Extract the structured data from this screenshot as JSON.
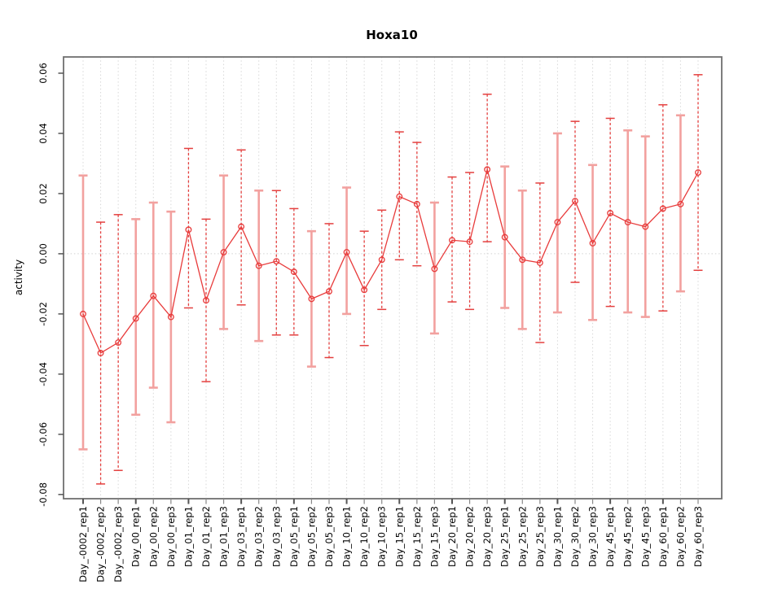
{
  "chart_data": {
    "type": "line",
    "title": "Hoxa10",
    "xlabel": "",
    "ylabel": "activity",
    "legend": "none",
    "marker": "open-circle",
    "grid": {
      "vertical": "dotted",
      "zero_line_dotted": true
    },
    "ylim": [
      -0.0814,
      0.0654
    ],
    "yticks": {
      "values": [
        0.06,
        0.04,
        0.02,
        0.0,
        -0.02,
        -0.04,
        -0.06,
        -0.08
      ],
      "labels": [
        "0.06",
        "0.04",
        "0.02",
        "0.00",
        "-0.02",
        "-0.04",
        "-0.06",
        "-0.08"
      ]
    },
    "categories": [
      "Day_-0002_rep1",
      "Day_-0002_rep2",
      "Day_-0002_rep3",
      "Day_00_rep1",
      "Day_00_rep2",
      "Day_00_rep3",
      "Day_01_rep1",
      "Day_01_rep2",
      "Day_01_rep3",
      "Day_03_rep1",
      "Day_03_rep2",
      "Day_03_rep3",
      "Day_05_rep1",
      "Day_05_rep2",
      "Day_05_rep3",
      "Day_10_rep1",
      "Day_10_rep2",
      "Day_10_rep3",
      "Day_15_rep1",
      "Day_15_rep2",
      "Day_15_rep3",
      "Day_20_rep1",
      "Day_20_rep2",
      "Day_20_rep3",
      "Day_25_rep1",
      "Day_25_rep2",
      "Day_25_rep3",
      "Day_30_rep1",
      "Day_30_rep2",
      "Day_30_rep3",
      "Day_45_rep1",
      "Day_45_rep2",
      "Day_45_rep3",
      "Day_60_rep1",
      "Day_60_rep2",
      "Day_60_rep3"
    ],
    "series": [
      {
        "name": "activity",
        "values": [
          -0.02,
          -0.033,
          -0.0295,
          -0.0215,
          -0.014,
          -0.021,
          0.008,
          -0.0155,
          0.0005,
          0.009,
          -0.004,
          -0.0025,
          -0.006,
          -0.015,
          -0.0125,
          0.0005,
          -0.012,
          -0.002,
          0.019,
          0.0165,
          -0.005,
          0.0045,
          0.004,
          0.028,
          0.0055,
          -0.002,
          -0.003,
          0.0105,
          0.0175,
          0.0035,
          0.0135,
          0.0105,
          0.009,
          0.015,
          0.0165,
          0.027
        ],
        "lower": [
          -0.065,
          -0.0765,
          -0.072,
          -0.0535,
          -0.0445,
          -0.056,
          -0.018,
          -0.0425,
          -0.025,
          -0.017,
          -0.029,
          -0.027,
          -0.027,
          -0.0375,
          -0.0345,
          -0.02,
          -0.0305,
          -0.0185,
          -0.002,
          -0.004,
          -0.0265,
          -0.016,
          -0.0185,
          0.004,
          -0.018,
          -0.025,
          -0.0295,
          -0.0195,
          -0.0095,
          -0.022,
          -0.0175,
          -0.0195,
          -0.021,
          -0.019,
          -0.0125,
          -0.0055
        ],
        "upper": [
          0.026,
          0.0105,
          0.013,
          0.0115,
          0.017,
          0.014,
          0.035,
          0.0115,
          0.026,
          0.0345,
          0.021,
          0.021,
          0.015,
          0.0075,
          0.01,
          0.022,
          0.0075,
          0.0145,
          0.0405,
          0.037,
          0.017,
          0.0255,
          0.027,
          0.053,
          0.029,
          0.021,
          0.0235,
          0.04,
          0.044,
          0.0295,
          0.045,
          0.041,
          0.039,
          0.0495,
          0.046,
          0.0595
        ],
        "bar_style": [
          "solid",
          "dashed",
          "dashed",
          "solid",
          "solid",
          "solid",
          "dashed",
          "dashed",
          "solid",
          "dashed",
          "solid",
          "dashed",
          "dashed",
          "solid",
          "dashed",
          "solid",
          "dashed",
          "dashed",
          "dashed",
          "dashed",
          "solid",
          "dashed",
          "dashed",
          "dashed",
          "solid",
          "solid",
          "dashed",
          "solid",
          "dashed",
          "solid",
          "dashed",
          "solid",
          "solid",
          "dashed",
          "solid",
          "dashed"
        ]
      }
    ],
    "colors": {
      "series": "#e83b3b",
      "bar_solid": "#f2a19f",
      "bar_dashed": "#e4403f",
      "grid": "#d8d8d8",
      "zero_line": "#d2d2d2",
      "box": "#707070",
      "tick_major": "#555555",
      "tick_minor": "#888888",
      "text": "#000000"
    }
  }
}
